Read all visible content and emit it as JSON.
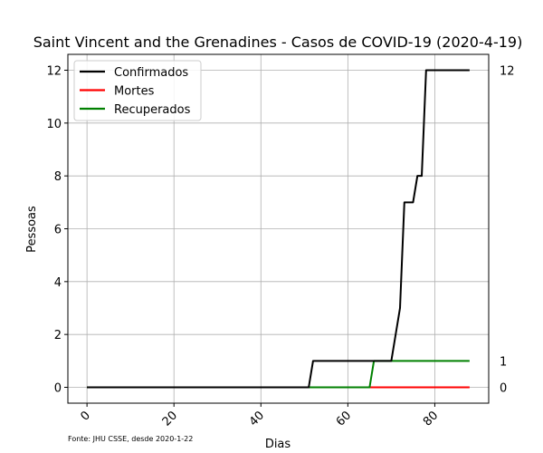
{
  "chart_data": {
    "type": "line",
    "title": "Saint Vincent and the Grenadines - Casos de COVID-19 (2020-4-19)",
    "xlabel": "Dias",
    "ylabel": "Pessoas",
    "xlim": [
      -4.4,
      92.4
    ],
    "ylim": [
      -0.6,
      12.6
    ],
    "xticks": [
      0,
      20,
      40,
      60,
      80
    ],
    "yticks": [
      0,
      2,
      4,
      6,
      8,
      10,
      12
    ],
    "grid": true,
    "legend_position": "top-left",
    "source_note": "Fonte: JHU CSSE, desde 2020-1-22",
    "end_labels": [
      "12",
      "1",
      "0"
    ],
    "series": [
      {
        "name": "Confirmados",
        "color": "#000000",
        "points": [
          [
            0,
            0
          ],
          [
            51,
            0
          ],
          [
            52,
            1
          ],
          [
            69,
            1
          ],
          [
            70,
            1
          ],
          [
            72,
            3
          ],
          [
            73,
            7
          ],
          [
            75,
            7
          ],
          [
            76,
            8
          ],
          [
            77,
            8
          ],
          [
            78,
            12
          ],
          [
            88,
            12
          ]
        ]
      },
      {
        "name": "Mortes",
        "color": "#ff0000",
        "points": [
          [
            0,
            0
          ],
          [
            88,
            0
          ]
        ]
      },
      {
        "name": "Recuperados",
        "color": "#008000",
        "points": [
          [
            0,
            0
          ],
          [
            65,
            0
          ],
          [
            66,
            1
          ],
          [
            88,
            1
          ]
        ]
      }
    ]
  }
}
